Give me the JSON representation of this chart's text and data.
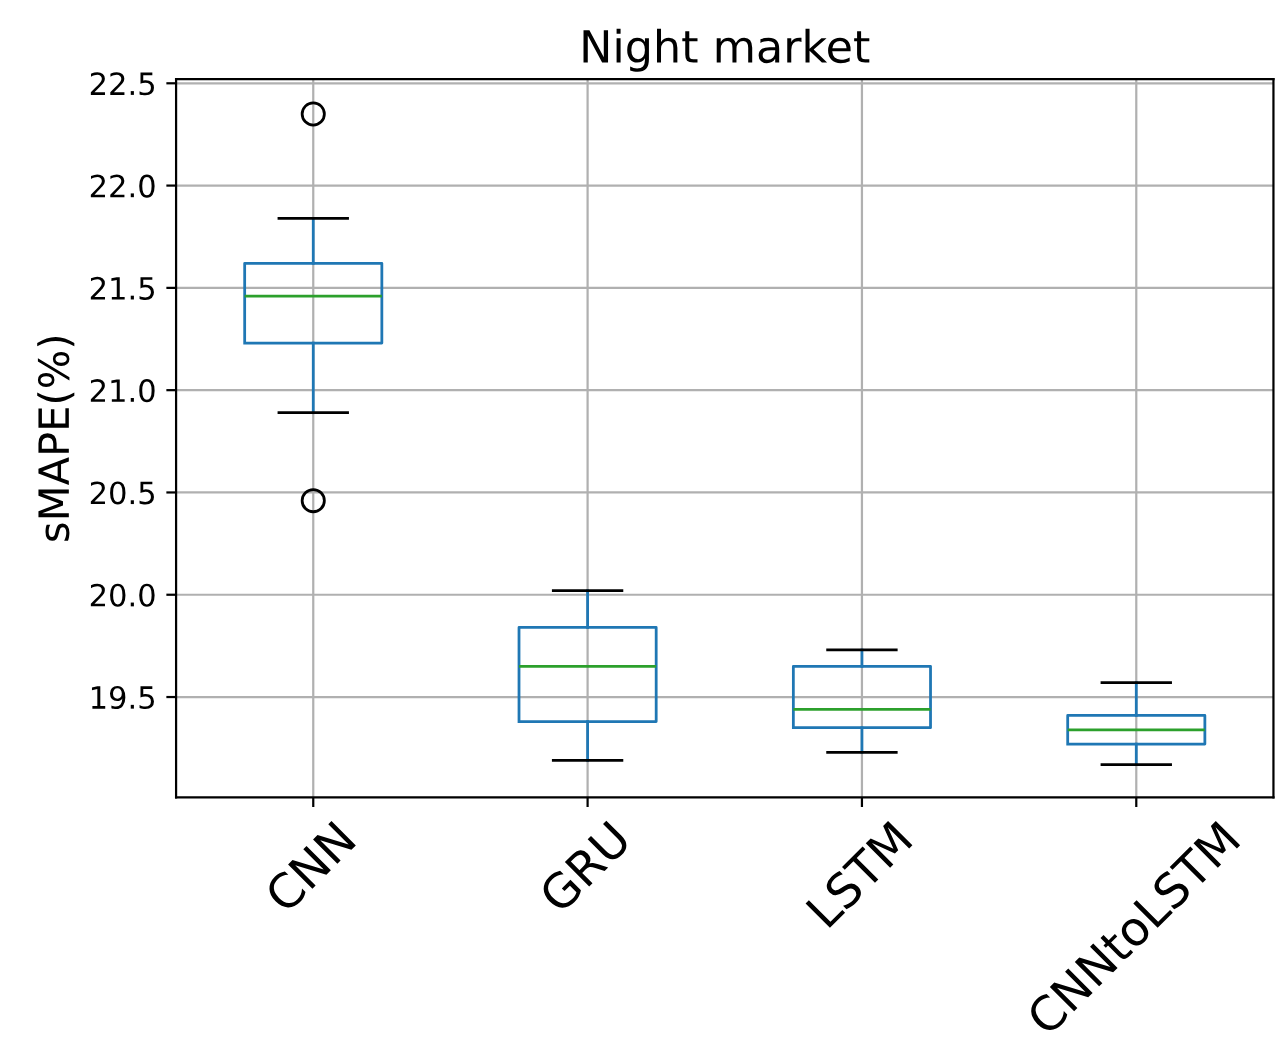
{
  "chart_data": {
    "type": "box",
    "title": "Night market",
    "ylabel": "sMAPE(%)",
    "categories": [
      "CNN",
      "GRU",
      "LSTM",
      "CNNtoLSTM"
    ],
    "boxes": [
      {
        "low": 20.89,
        "q1": 21.23,
        "median": 21.46,
        "q3": 21.62,
        "high": 21.84,
        "outliers": [
          22.35,
          20.46
        ]
      },
      {
        "low": 19.19,
        "q1": 19.38,
        "median": 19.65,
        "q3": 19.84,
        "high": 20.02
      },
      {
        "low": 19.23,
        "q1": 19.35,
        "median": 19.44,
        "q3": 19.65,
        "high": 19.73
      },
      {
        "low": 19.17,
        "q1": 19.27,
        "median": 19.34,
        "q3": 19.41,
        "high": 19.57
      }
    ],
    "color": "#1f77b4",
    "ylim": [
      19.01,
      22.52
    ],
    "yticks": [
      {
        "value": 19.5,
        "label": "19.5"
      },
      {
        "value": 20.0,
        "label": "20.0"
      },
      {
        "value": 20.5,
        "label": "20.5"
      },
      {
        "value": 21.0,
        "label": "21.0"
      },
      {
        "value": 21.5,
        "label": "21.5"
      },
      {
        "value": 22.0,
        "label": "22.0"
      },
      {
        "value": 22.5,
        "label": "22.5"
      }
    ],
    "grid": true,
    "marker": "circle"
  }
}
